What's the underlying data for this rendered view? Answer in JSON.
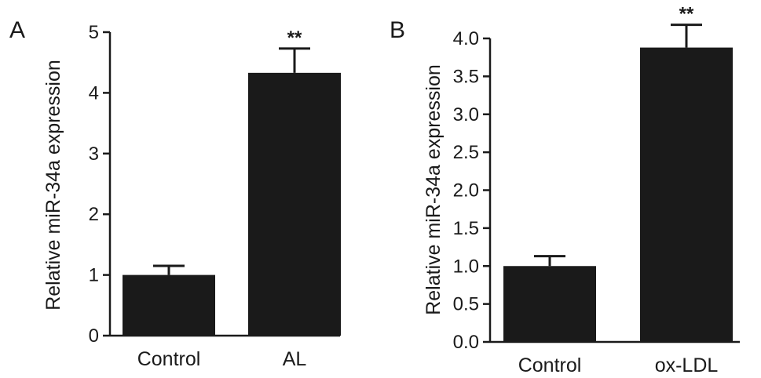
{
  "chart_data": [
    {
      "type": "bar",
      "panel_label": "A",
      "ylabel": "Relative miR-34a expression",
      "xlabel": "",
      "categories": [
        "Control",
        "AL"
      ],
      "values": [
        1.0,
        4.33
      ],
      "errors": [
        0.15,
        0.4
      ],
      "significance": [
        "",
        "**"
      ],
      "ylim": [
        0,
        5
      ],
      "yticks": [
        "0",
        "1",
        "2",
        "3",
        "4",
        "5"
      ],
      "grid": false,
      "bar_color": "#1a1a1a"
    },
    {
      "type": "bar",
      "panel_label": "B",
      "ylabel": "Relative miR-34a expression",
      "xlabel": "",
      "categories": [
        "Control",
        "ox-LDL"
      ],
      "values": [
        1.0,
        3.88
      ],
      "errors": [
        0.13,
        0.3
      ],
      "significance": [
        "",
        "**"
      ],
      "ylim": [
        0,
        4.0
      ],
      "yticks": [
        "0.0",
        "0.5",
        "1.0",
        "1.5",
        "2.0",
        "2.5",
        "3.0",
        "3.5",
        "4.0"
      ],
      "grid": false,
      "bar_color": "#1a1a1a"
    }
  ]
}
